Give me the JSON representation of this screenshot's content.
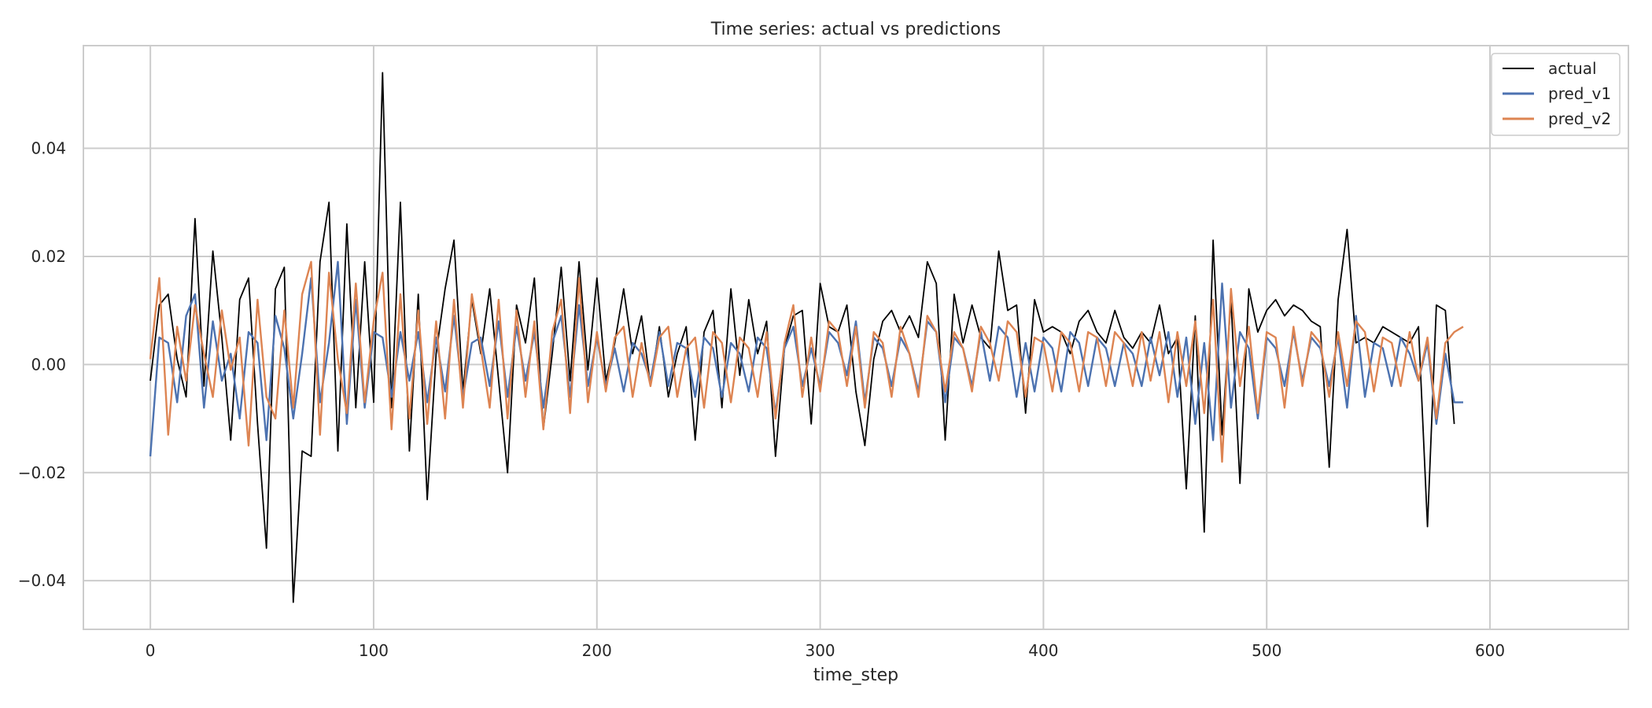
{
  "chart_data": {
    "type": "line",
    "title": "Time series: actual vs predictions",
    "xlabel": "time_step",
    "ylabel": "",
    "xlim": [
      -30,
      662
    ],
    "ylim": [
      -0.049,
      0.059
    ],
    "xticks": [
      0,
      100,
      200,
      300,
      400,
      500,
      600
    ],
    "xtick_labels": [
      "0",
      "100",
      "200",
      "300",
      "400",
      "500",
      "600"
    ],
    "yticks": [
      -0.04,
      -0.02,
      0.0,
      0.02,
      0.04
    ],
    "ytick_labels": [
      "−0.04",
      "−0.02",
      "0.00",
      "0.02",
      "0.04"
    ],
    "grid": true,
    "legend_position": "top-right",
    "x_range": [
      0,
      632
    ],
    "colors": {
      "actual": "#000000",
      "pred_v1": "#4c72b0",
      "pred_v2": "#dd8452"
    },
    "series": [
      {
        "name": "actual",
        "x_start": 0,
        "x_step": 4,
        "values": [
          -0.003,
          0.011,
          0.013,
          0.001,
          -0.006,
          0.027,
          -0.004,
          0.021,
          0.005,
          -0.014,
          0.012,
          0.016,
          -0.011,
          -0.034,
          0.014,
          0.018,
          -0.044,
          -0.016,
          -0.017,
          0.019,
          0.03,
          -0.016,
          0.026,
          -0.008,
          0.019,
          -0.007,
          0.054,
          -0.008,
          0.03,
          -0.016,
          0.013,
          -0.025,
          0.002,
          0.014,
          0.023,
          -0.005,
          0.012,
          0.002,
          0.014,
          -0.003,
          -0.02,
          0.011,
          0.004,
          0.016,
          -0.012,
          0.002,
          0.018,
          -0.003,
          0.019,
          -0.001,
          0.016,
          -0.003,
          0.004,
          0.014,
          0.002,
          0.009,
          -0.004,
          0.007,
          -0.006,
          0.002,
          0.007,
          -0.014,
          0.006,
          0.01,
          -0.008,
          0.014,
          -0.002,
          0.012,
          0.002,
          0.008,
          -0.017,
          0.003,
          0.009,
          0.01,
          -0.011,
          0.015,
          0.007,
          0.006,
          0.011,
          -0.005,
          -0.015,
          0.001,
          0.008,
          0.01,
          0.006,
          0.009,
          0.005,
          0.019,
          0.015,
          -0.014,
          0.013,
          0.004,
          0.011,
          0.005,
          0.003,
          0.021,
          0.01,
          0.011,
          -0.009,
          0.012,
          0.006,
          0.007,
          0.006,
          0.002,
          0.008,
          0.01,
          0.006,
          0.004,
          0.01,
          0.005,
          0.003,
          0.006,
          0.004,
          0.011,
          0.002,
          0.005,
          -0.023,
          0.009,
          -0.031,
          0.023,
          -0.013,
          0.012,
          -0.022,
          0.014,
          0.006,
          0.01,
          0.012,
          0.009,
          0.011,
          0.01,
          0.008,
          0.007,
          -0.019,
          0.012,
          0.025,
          0.004,
          0.005,
          0.004,
          0.007,
          0.006,
          0.005,
          0.004,
          0.007,
          -0.03,
          0.011,
          0.01,
          -0.011
        ]
      },
      {
        "name": "pred_v1",
        "x_start": 0,
        "x_step": 4,
        "values": [
          -0.017,
          0.005,
          0.004,
          -0.007,
          0.009,
          0.013,
          -0.008,
          0.008,
          -0.003,
          0.002,
          -0.01,
          0.006,
          0.004,
          -0.014,
          0.009,
          0.003,
          -0.01,
          0.002,
          0.016,
          -0.007,
          0.004,
          0.019,
          -0.011,
          0.012,
          -0.008,
          0.006,
          0.005,
          -0.006,
          0.006,
          -0.003,
          0.006,
          -0.007,
          0.005,
          -0.005,
          0.009,
          -0.006,
          0.004,
          0.005,
          -0.004,
          0.008,
          -0.006,
          0.007,
          -0.003,
          0.006,
          -0.008,
          0.004,
          0.009,
          -0.006,
          0.011,
          -0.004,
          0.005,
          -0.004,
          0.003,
          -0.005,
          0.004,
          0.002,
          -0.003,
          0.006,
          -0.004,
          0.004,
          0.003,
          -0.006,
          0.005,
          0.003,
          -0.006,
          0.004,
          0.002,
          -0.005,
          0.005,
          0.003,
          -0.009,
          0.003,
          0.007,
          -0.004,
          0.003,
          -0.004,
          0.006,
          0.004,
          -0.002,
          0.008,
          -0.007,
          0.005,
          0.003,
          -0.004,
          0.005,
          0.002,
          -0.005,
          0.008,
          0.006,
          -0.007,
          0.005,
          0.003,
          -0.004,
          0.006,
          -0.003,
          0.007,
          0.005,
          -0.006,
          0.004,
          -0.005,
          0.005,
          0.003,
          -0.005,
          0.006,
          0.004,
          -0.004,
          0.005,
          0.003,
          -0.004,
          0.004,
          0.002,
          -0.004,
          0.005,
          -0.002,
          0.006,
          -0.006,
          0.005,
          -0.011,
          0.004,
          -0.014,
          0.015,
          -0.008,
          0.006,
          0.003,
          -0.01,
          0.005,
          0.003,
          -0.004,
          0.006,
          -0.003,
          0.005,
          0.003,
          -0.004,
          0.005,
          -0.008,
          0.009,
          -0.006,
          0.004,
          0.003,
          -0.004,
          0.005,
          0.002,
          -0.003,
          0.004,
          -0.011,
          0.002,
          -0.007,
          -0.007
        ]
      },
      {
        "name": "pred_v2",
        "x_start": 0,
        "x_step": 4,
        "values": [
          0.001,
          0.016,
          -0.013,
          0.007,
          -0.003,
          0.011,
          0.002,
          -0.006,
          0.01,
          -0.001,
          0.005,
          -0.015,
          0.012,
          -0.006,
          -0.01,
          0.01,
          -0.008,
          0.013,
          0.019,
          -0.013,
          0.017,
          0.001,
          -0.009,
          0.015,
          -0.007,
          0.008,
          0.017,
          -0.012,
          0.013,
          -0.01,
          0.01,
          -0.011,
          0.008,
          -0.01,
          0.012,
          -0.008,
          0.013,
          0.003,
          -0.008,
          0.012,
          -0.01,
          0.01,
          -0.006,
          0.008,
          -0.012,
          0.006,
          0.012,
          -0.009,
          0.016,
          -0.007,
          0.006,
          -0.005,
          0.005,
          0.007,
          -0.006,
          0.004,
          -0.004,
          0.005,
          0.007,
          -0.006,
          0.003,
          0.005,
          -0.008,
          0.006,
          0.004,
          -0.007,
          0.005,
          0.003,
          -0.006,
          0.006,
          -0.01,
          0.004,
          0.011,
          -0.006,
          0.005,
          -0.005,
          0.008,
          0.006,
          -0.004,
          0.007,
          -0.008,
          0.006,
          0.004,
          -0.006,
          0.007,
          0.002,
          -0.006,
          0.009,
          0.006,
          -0.005,
          0.006,
          0.003,
          -0.005,
          0.007,
          0.004,
          -0.003,
          0.008,
          0.006,
          -0.006,
          0.005,
          0.004,
          -0.005,
          0.006,
          0.004,
          -0.005,
          0.006,
          0.005,
          -0.004,
          0.006,
          0.004,
          -0.004,
          0.006,
          -0.003,
          0.006,
          -0.007,
          0.006,
          -0.004,
          0.008,
          -0.009,
          0.012,
          -0.018,
          0.014,
          -0.004,
          0.007,
          -0.009,
          0.006,
          0.005,
          -0.008,
          0.007,
          -0.004,
          0.006,
          0.004,
          -0.006,
          0.006,
          -0.004,
          0.008,
          0.006,
          -0.005,
          0.005,
          0.004,
          -0.004,
          0.006,
          -0.003,
          0.005,
          -0.01,
          0.004,
          0.006,
          0.007
        ]
      }
    ]
  }
}
